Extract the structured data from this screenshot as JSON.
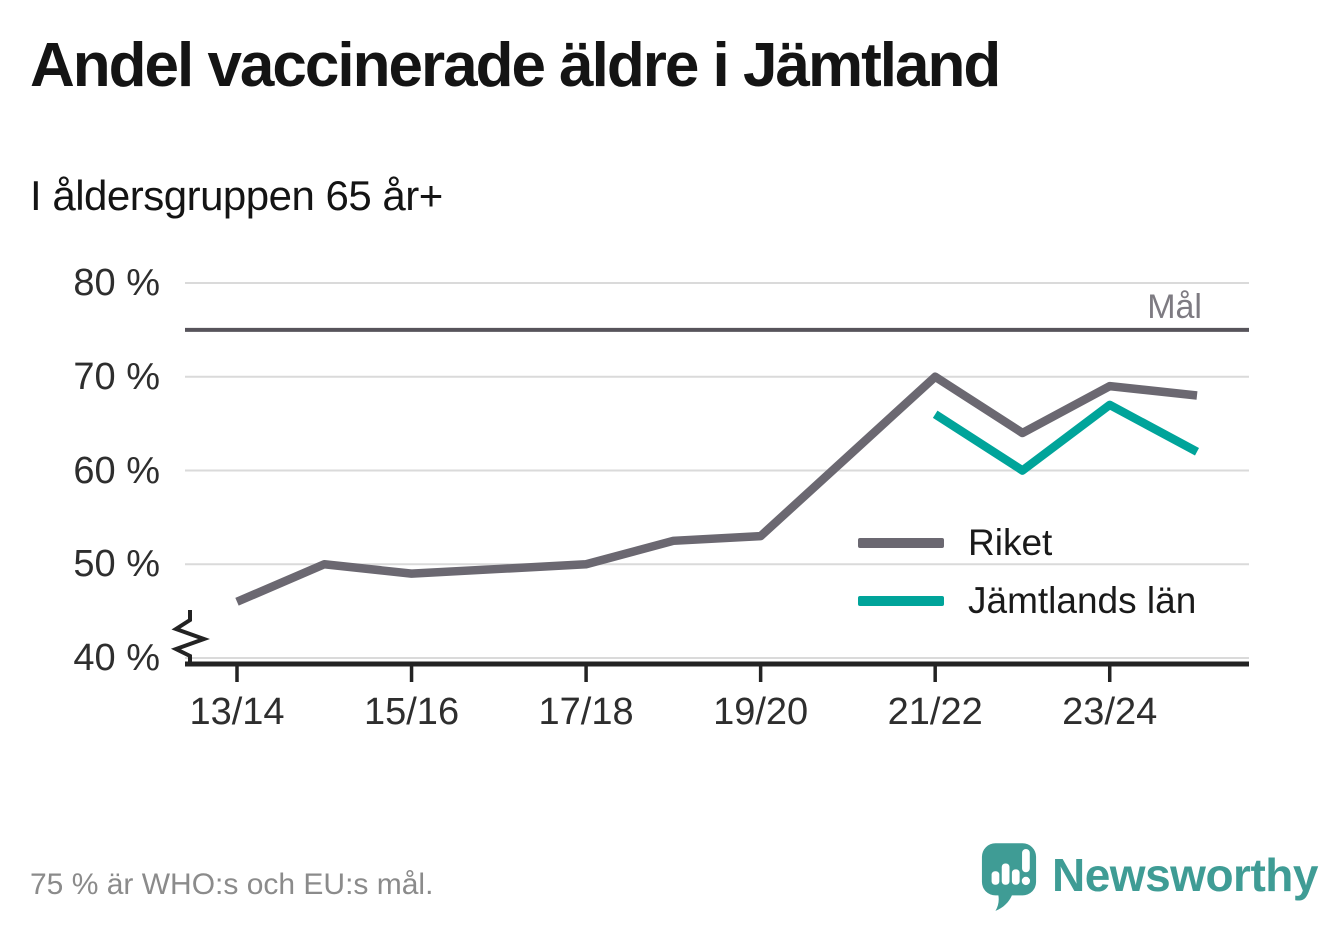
{
  "header": {
    "title": "Andel vaccinerade äldre i Jämtland",
    "subtitle": "I åldersgruppen 65 år+"
  },
  "chart_data": {
    "type": "line",
    "categories": [
      "13/14",
      "14/15",
      "15/16",
      "16/17",
      "17/18",
      "18/19",
      "19/20",
      "20/21",
      "21/22",
      "22/23",
      "23/24",
      "24/25"
    ],
    "x_tick_labels": [
      "13/14",
      "15/16",
      "17/18",
      "19/20",
      "21/22",
      "23/24"
    ],
    "y_ticks": [
      40,
      50,
      60,
      70,
      80
    ],
    "y_tick_labels": [
      "40 %",
      "50 %",
      "60 %",
      "70 %",
      "80 %"
    ],
    "ylim": [
      40,
      80
    ],
    "y_axis_break": true,
    "grid": true,
    "legend_position": "inside-right",
    "series": [
      {
        "name": "Riket",
        "color": "#6b6871",
        "values": [
          46,
          50,
          49,
          49.5,
          50,
          52.5,
          53,
          61.5,
          70,
          64,
          69,
          68
        ]
      },
      {
        "name": "Jämtlands län",
        "color": "#00a49a",
        "values": [
          null,
          null,
          null,
          null,
          null,
          null,
          null,
          null,
          66,
          60,
          67,
          62
        ]
      }
    ],
    "goal_line": {
      "label": "Mål",
      "value": 75,
      "color": "#57545b"
    }
  },
  "footer": {
    "note": "75 % är WHO:s och EU:s mål.",
    "brand": "Newsworthy",
    "brand_color": "#3f9c95"
  }
}
